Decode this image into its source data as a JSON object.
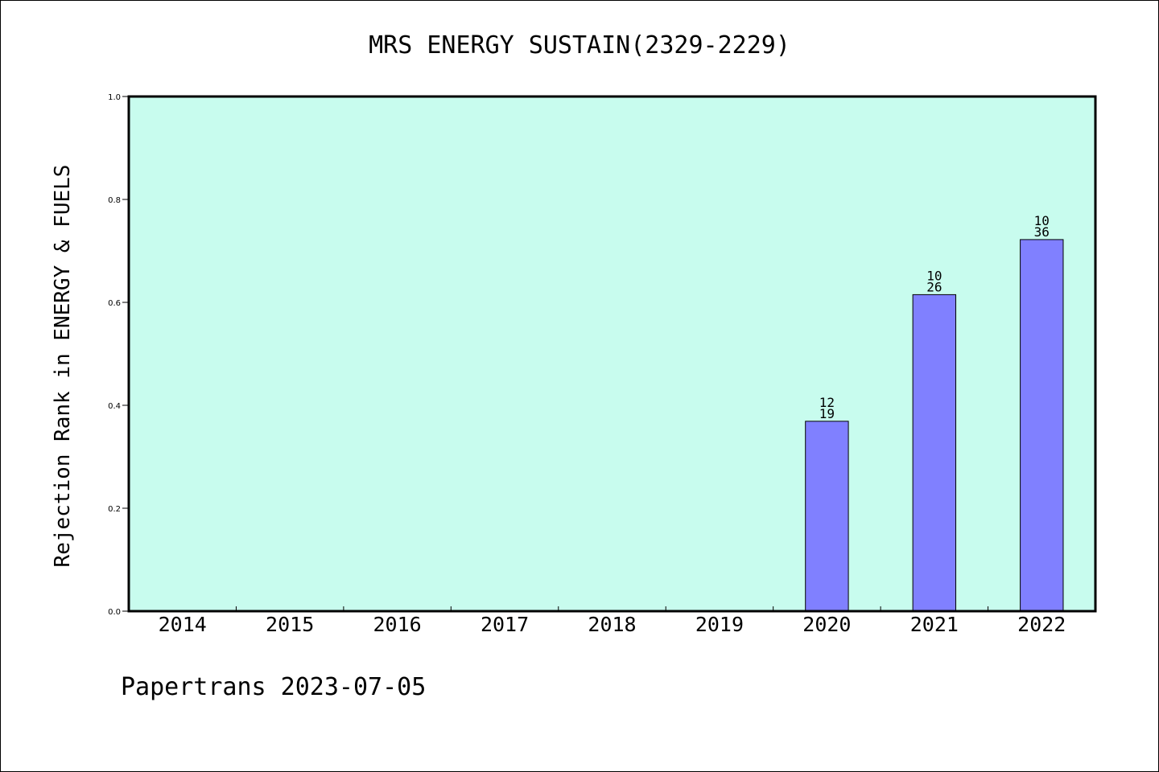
{
  "colors": {
    "plot_background": "#c8fcee",
    "bar_fill": "#8080ff",
    "bar_stroke": "#000000",
    "axis": "#000000"
  },
  "footer": "Papertrans 2023-07-05",
  "chart_data": {
    "type": "bar",
    "title": "MRS ENERGY SUSTAIN(2329-2229)",
    "xlabel": "",
    "ylabel": "Rejection Rank in ENERGY & FUELS",
    "ylim": [
      0,
      1.0
    ],
    "yticks": [
      "0.0",
      "0.2",
      "0.4",
      "0.6",
      "0.8",
      "1.0"
    ],
    "grid": false,
    "categories": [
      "2014",
      "2015",
      "2016",
      "2017",
      "2018",
      "2019",
      "2020",
      "2021",
      "2022"
    ],
    "values": [
      null,
      null,
      null,
      null,
      null,
      null,
      0.369,
      0.615,
      0.722
    ],
    "bar_labels": [
      null,
      null,
      null,
      null,
      null,
      null,
      [
        "12",
        "19"
      ],
      [
        "10",
        "26"
      ],
      [
        "10",
        "36"
      ]
    ]
  }
}
